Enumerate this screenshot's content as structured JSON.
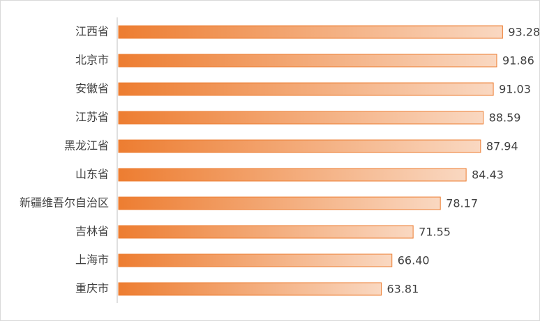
{
  "chart_data": {
    "type": "bar",
    "orientation": "horizontal",
    "categories": [
      "江西省",
      "北京市",
      "安徽省",
      "江苏省",
      "黑龙江省",
      "山东省",
      "新疆维吾尔自治区",
      "吉林省",
      "上海市",
      "重庆市"
    ],
    "values": [
      93.28,
      91.86,
      91.03,
      88.59,
      87.94,
      84.43,
      78.17,
      71.55,
      66.4,
      63.81
    ],
    "value_labels": [
      "93.28",
      "91.86",
      "91.03",
      "88.59",
      "87.94",
      "84.43",
      "78.17",
      "71.55",
      "66.40",
      "63.81"
    ],
    "color": "#ed7d31",
    "xlim": [
      0,
      100
    ]
  }
}
